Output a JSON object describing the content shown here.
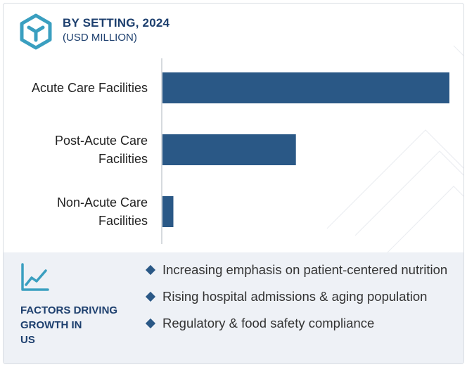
{
  "header": {
    "title": "BY SETTING, 2024",
    "subtitle": "(USD MILLION)",
    "logo_icon": "cube-logo-icon",
    "accent_color": "#3a9fc0"
  },
  "chart_data": {
    "type": "bar",
    "orientation": "horizontal",
    "categories": [
      [
        "Acute Care Facilities"
      ],
      [
        "Post-Acute Care",
        "Facilities"
      ],
      [
        "Non-Acute Care",
        "Facilities"
      ]
    ],
    "values": [
      100,
      46.5,
      3.8
    ],
    "bar_color": "#2a5886",
    "xlim": [
      0,
      100
    ],
    "grid": false,
    "value_labels_shown": false
  },
  "factors": {
    "icon": "trend-chart-icon",
    "title_lines": [
      "FACTORS DRIVING",
      "GROWTH IN",
      "US"
    ],
    "items": [
      "Increasing emphasis on patient-centered nutrition",
      "Rising hospital admissions & aging population",
      "Regulatory & food safety compliance"
    ]
  }
}
